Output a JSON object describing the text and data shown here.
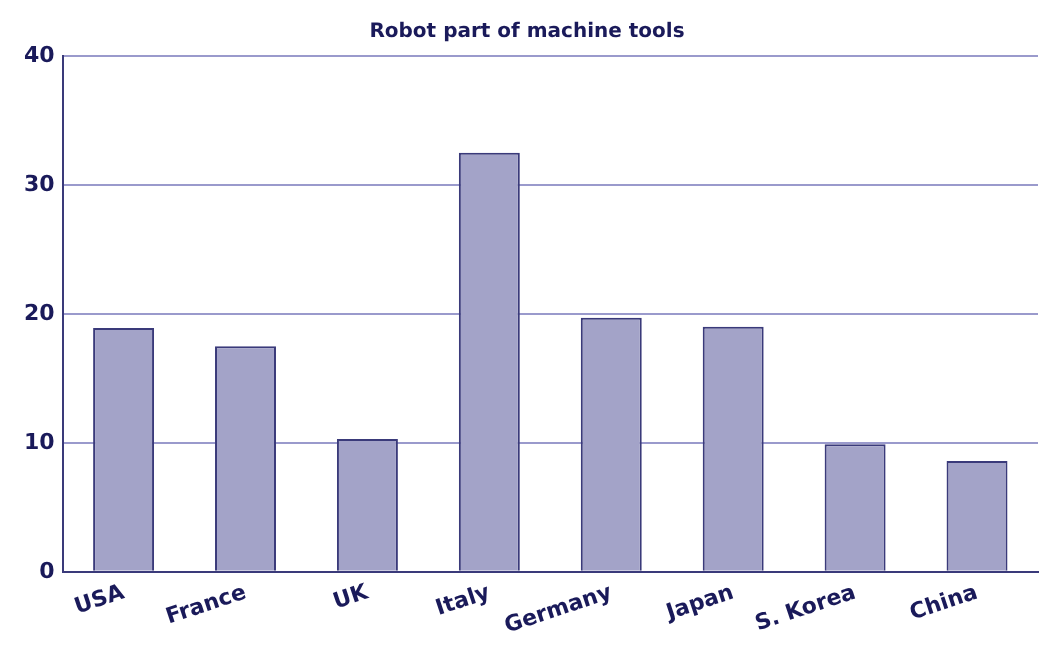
{
  "chart_data": {
    "type": "bar",
    "title": "Robot part of machine tools",
    "categories": [
      "USA",
      "France",
      "UK",
      "Italy",
      "Germany",
      "Japan",
      "S. Korea",
      "China"
    ],
    "values": [
      18.9,
      17.5,
      10.3,
      32.5,
      19.7,
      19.0,
      9.9,
      8.6
    ],
    "color": "#a3a3c8",
    "ylim": [
      0,
      40
    ],
    "yticks": [
      0,
      10,
      20,
      30,
      40
    ],
    "grid": "y"
  }
}
